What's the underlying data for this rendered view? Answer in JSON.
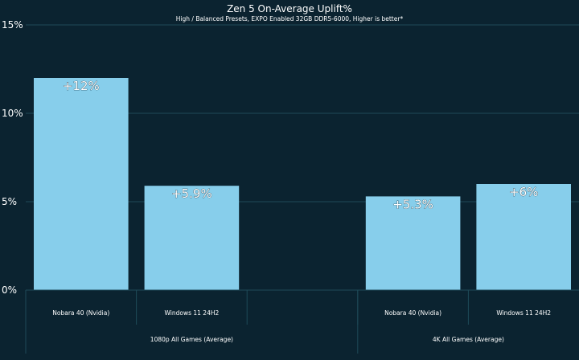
{
  "chart_data": {
    "type": "bar",
    "title": "Zen 5 On-Average Uplift%",
    "subtitle": "High / Balanced Presets, EXPO Enabled 32GB DDR5-6000, Higher is better*",
    "ylim": [
      0,
      15
    ],
    "yticks": [
      {
        "value": 0,
        "label": "0%"
      },
      {
        "value": 5,
        "label": "5%"
      },
      {
        "value": 10,
        "label": "10%"
      },
      {
        "value": 15,
        "label": "15%"
      }
    ],
    "grid": true,
    "groups": [
      {
        "label": "1080p All Games (Average)",
        "categories": [
          "Nobara 40 (Nvidia)",
          "Windows 11 24H2",
          ""
        ],
        "values": [
          12,
          5.9,
          null
        ],
        "data_labels": [
          "+12%",
          "+5.9%",
          ""
        ]
      },
      {
        "label": "4K All Games (Average)",
        "categories": [
          "Nobara 40 (Nvidia)",
          "Windows 11 24H2"
        ],
        "values": [
          5.3,
          6
        ],
        "data_labels": [
          "+5.3%",
          "+6%"
        ]
      }
    ],
    "colors": {
      "background": "#0b2330",
      "bar": "#87ceeb",
      "grid": "#1f4a58",
      "text": "#ffffff"
    }
  }
}
